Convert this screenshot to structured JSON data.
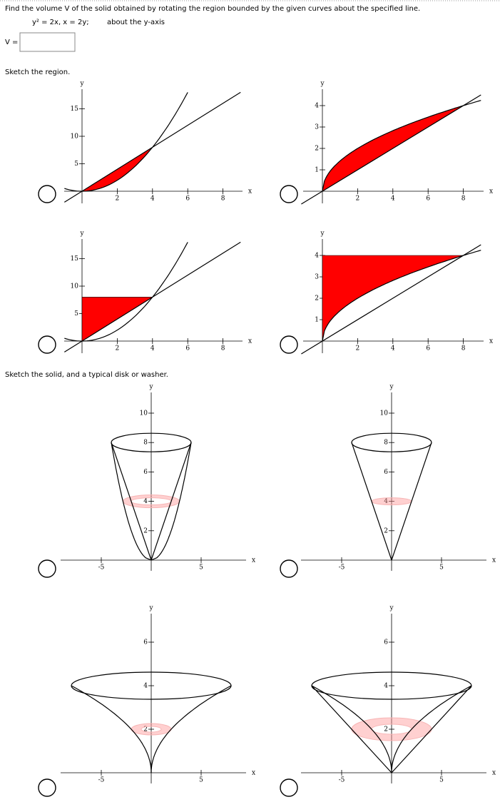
{
  "question": {
    "text": "Find the volume V of the solid obtained by rotating the region bounded by the given curves about the specified line.",
    "equation": "y² = 2x, x = 2y;",
    "rotation": "about the y-axis"
  },
  "answer_label": "V =",
  "region_heading": "Sketch the region.",
  "solid_heading": "Sketch the solid, and a typical disk or washer.",
  "region_plots": [
    {
      "x_label": "x",
      "y_label": "y",
      "xticks": [
        2,
        4,
        6,
        8
      ],
      "yticks": [
        5,
        10,
        15
      ]
    },
    {
      "x_label": "x",
      "y_label": "y",
      "xticks": [
        2,
        4,
        6,
        8
      ],
      "yticks": [
        1,
        2,
        3,
        4
      ]
    },
    {
      "x_label": "x",
      "y_label": "y",
      "xticks": [
        2,
        4,
        6,
        8
      ],
      "yticks": [
        5,
        10,
        15
      ]
    },
    {
      "x_label": "x",
      "y_label": "y",
      "xticks": [
        2,
        4,
        6,
        8
      ],
      "yticks": [
        1,
        2,
        3,
        4
      ]
    }
  ],
  "solid_plots": [
    {
      "x_label": "x",
      "y_label": "y",
      "xticks": [
        -5,
        5
      ],
      "yticks": [
        2,
        4,
        6,
        8,
        10
      ]
    },
    {
      "x_label": "x",
      "y_label": "y",
      "xticks": [
        -5,
        5
      ],
      "yticks": [
        2,
        4,
        6,
        8,
        10
      ]
    },
    {
      "x_label": "x",
      "y_label": "y",
      "xticks": [
        -5,
        5
      ],
      "yticks": [
        2,
        4,
        6
      ]
    },
    {
      "x_label": "x",
      "y_label": "y",
      "xticks": [
        -5,
        5
      ],
      "yticks": [
        2,
        4,
        6
      ]
    }
  ]
}
